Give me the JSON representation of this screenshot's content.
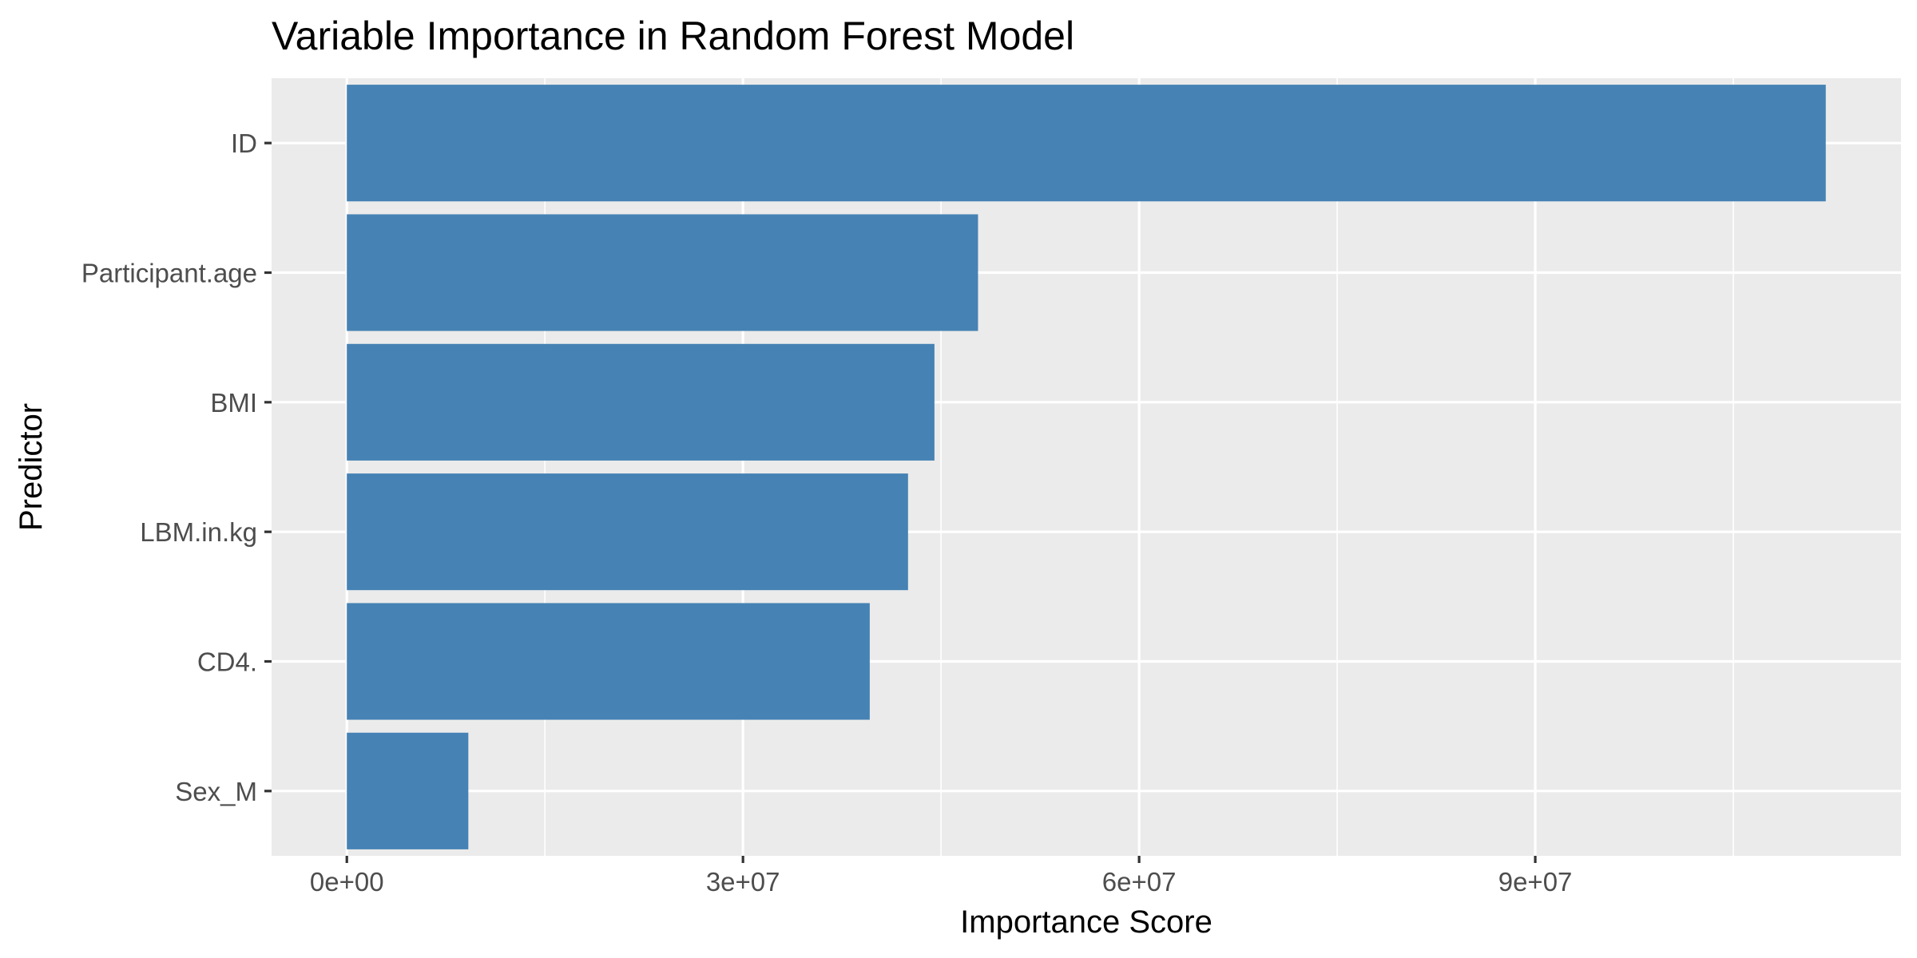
{
  "chart_data": {
    "type": "bar",
    "orientation": "horizontal",
    "title": "Variable Importance in Random Forest Model",
    "xlabel": "Importance Score",
    "ylabel": "Predictor",
    "categories": [
      "ID",
      "Participant.age",
      "BMI",
      "LBM.in.kg",
      "CD4.",
      "Sex_M"
    ],
    "values": [
      112000000,
      47800000,
      44500000,
      42500000,
      39600000,
      9200000
    ],
    "xlim": [
      -5700000,
      117700000
    ],
    "xticks": [
      0,
      30000000,
      60000000,
      90000000
    ],
    "xtick_labels": [
      "0e+00",
      "3e+07",
      "6e+07",
      "9e+07"
    ],
    "grid": true,
    "legend": "none",
    "colors": {
      "bar": "#4682b4",
      "panel_background": "#ebebeb",
      "grid": "#ffffff",
      "tick_mark": "#333333"
    }
  }
}
